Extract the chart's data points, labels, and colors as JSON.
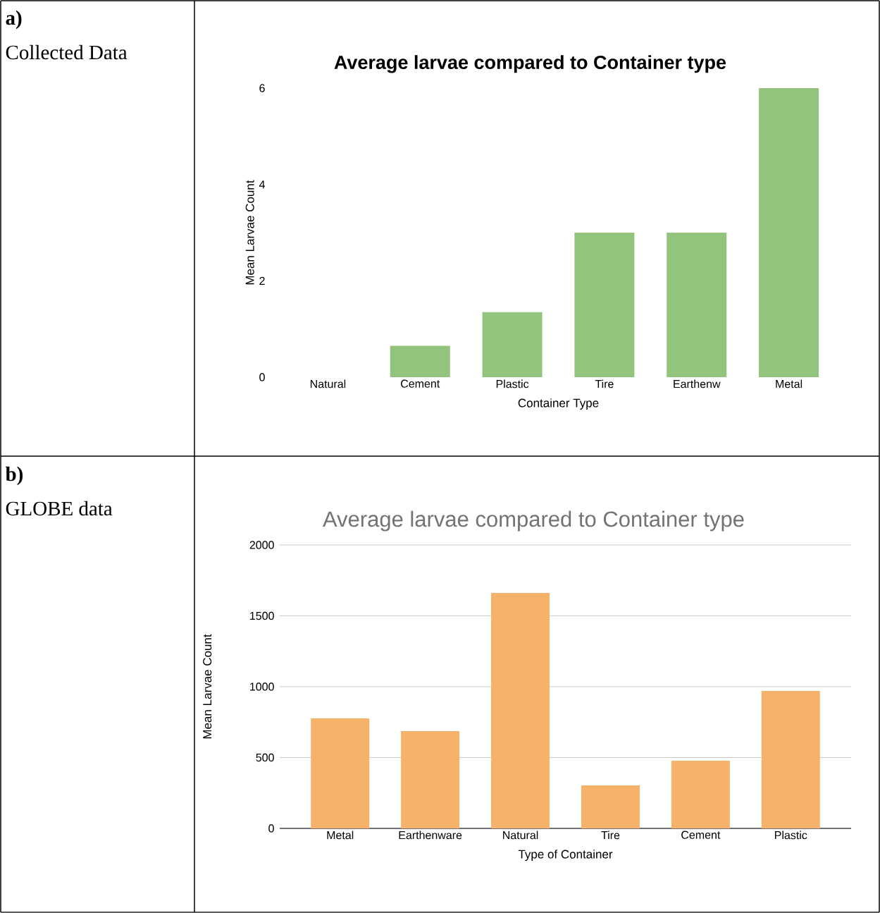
{
  "chart_data": [
    {
      "type": "bar",
      "title": "Average larvae compared to Container type",
      "xlabel": "Container Type",
      "ylabel": "Mean Larvae Count",
      "categories": [
        "Natural",
        "Cement",
        "Plastic",
        "Tire",
        "Earthenw",
        "Metal"
      ],
      "values": [
        0,
        0.65,
        1.35,
        3,
        3,
        6
      ],
      "color": "#93c47d",
      "ylim": [
        0,
        6
      ],
      "yticks": [
        0,
        2,
        4,
        6
      ],
      "annotations": [
        "a)",
        "Collected Data"
      ]
    },
    {
      "type": "bar",
      "title": "Average larvae compared to Container type",
      "xlabel": "Type of Container",
      "ylabel": "Mean Larvae Count",
      "categories": [
        "Metal",
        "Earthenware",
        "Natural",
        "Tire",
        "Cement",
        "Plastic"
      ],
      "values": [
        776,
        687,
        1662,
        303,
        478,
        970
      ],
      "color": "#f6b26b",
      "ylim": [
        0,
        2000
      ],
      "yticks": [
        0,
        500,
        1000,
        1500,
        2000
      ],
      "grid": "y",
      "annotations": [
        "b)",
        "GLOBE data"
      ]
    }
  ]
}
